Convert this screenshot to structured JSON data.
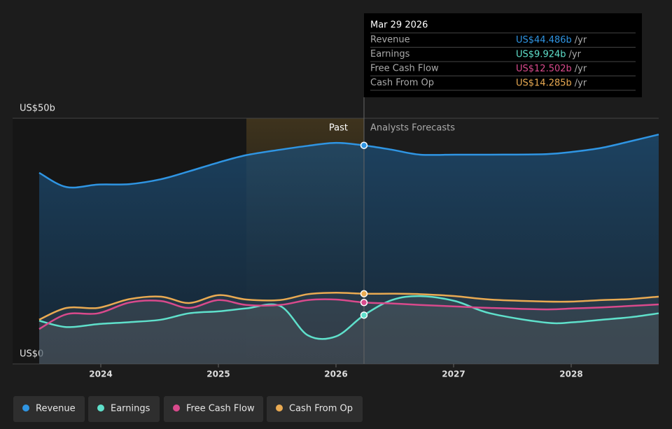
{
  "chart_data": {
    "type": "line",
    "x": [
      2023.476,
      2023.708,
      2023.976,
      2024.244,
      2024.512,
      2024.75,
      2025.0,
      2025.238,
      2025.524,
      2025.762,
      2026.0,
      2026.238,
      2026.476,
      2026.714,
      2027.012,
      2027.31,
      2027.786,
      2028.024,
      2028.262,
      2028.5,
      2028.744
    ],
    "series": [
      {
        "name": "Revenue",
        "color": "#2f95e3",
        "values": [
          38.9,
          36.0,
          36.5,
          36.6,
          37.6,
          39.2,
          41.0,
          42.5,
          43.6,
          44.4,
          45.0,
          44.486,
          43.6,
          42.6,
          42.6,
          42.6,
          42.7,
          43.2,
          44.0,
          45.3,
          46.7
        ]
      },
      {
        "name": "Earnings",
        "color": "#5fe0cb",
        "values": [
          8.8,
          7.5,
          8.1,
          8.5,
          9.0,
          10.3,
          10.7,
          11.3,
          11.8,
          5.8,
          5.6,
          9.924,
          13.0,
          13.8,
          12.8,
          10.3,
          8.4,
          8.5,
          9.0,
          9.5,
          10.3
        ]
      },
      {
        "name": "Free Cash Flow",
        "color": "#d94a8c",
        "values": [
          7.1,
          10.1,
          10.3,
          12.5,
          12.8,
          11.4,
          13.0,
          12.0,
          12.0,
          13.0,
          13.1,
          12.502,
          12.3,
          12.0,
          11.7,
          11.4,
          11.1,
          11.3,
          11.5,
          11.8,
          12.1
        ]
      },
      {
        "name": "Cash From Op",
        "color": "#e9aa52",
        "values": [
          9.0,
          11.4,
          11.4,
          13.2,
          13.7,
          12.4,
          14.0,
          13.1,
          13.0,
          14.2,
          14.5,
          14.285,
          14.3,
          14.2,
          13.8,
          13.1,
          12.7,
          12.7,
          13.0,
          13.2,
          13.7
        ]
      }
    ],
    "xlim": [
      2023.25,
      2028.744
    ],
    "xticks": [
      2024,
      2025,
      2026,
      2027,
      2028
    ],
    "ylim": [
      0,
      50
    ],
    "yticks": [
      {
        "value": 0,
        "label": "US$0"
      },
      {
        "value": 50,
        "label": "US$50b"
      }
    ],
    "annotations": {
      "past": "Past",
      "forecast": "Analysts Forecasts"
    },
    "tooltip": {
      "title": "Mar 29 2026",
      "labels": [
        "US$44.486b",
        "US$9.924b",
        "US$12.502b",
        "US$14.285b"
      ],
      "unit": "/yr"
    }
  }
}
